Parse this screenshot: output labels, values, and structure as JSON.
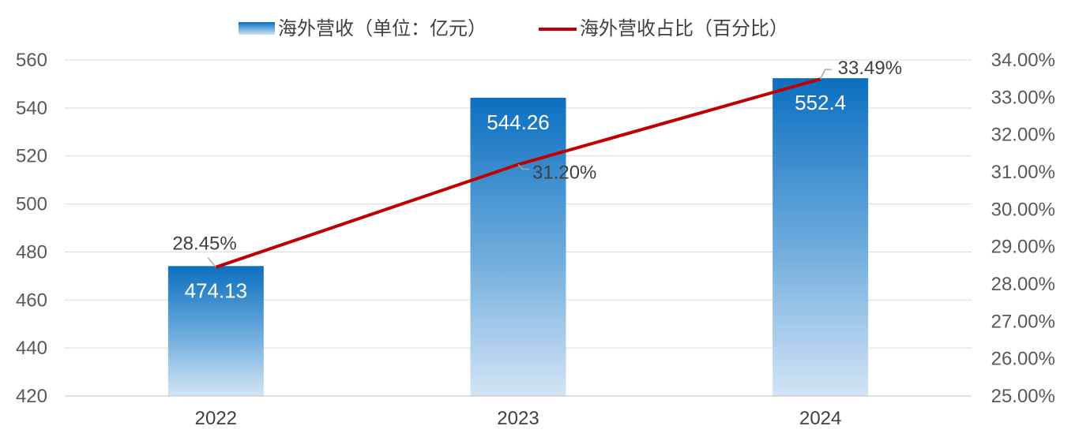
{
  "chart_data": {
    "type": "bar",
    "categories": [
      "2022",
      "2023",
      "2024"
    ],
    "series": [
      {
        "name": "海外营收（单位：亿元）",
        "type": "bar",
        "axis": "left",
        "values": [
          474.13,
          544.26,
          552.4
        ],
        "labels": [
          "474.13",
          "544.26",
          "552.4"
        ],
        "color": "#1a75c2"
      },
      {
        "name": "海外营收占比（百分比）",
        "type": "line",
        "axis": "right",
        "values": [
          28.45,
          31.2,
          33.49
        ],
        "labels": [
          "28.45%",
          "31.20%",
          "33.49%"
        ],
        "color": "#c00000"
      }
    ],
    "y_left": {
      "min": 420,
      "max": 560,
      "ticks": [
        "420",
        "440",
        "460",
        "480",
        "500",
        "520",
        "540",
        "560"
      ]
    },
    "y_right": {
      "min": 25,
      "max": 34,
      "ticks": [
        "25.00%",
        "26.00%",
        "27.00%",
        "28.00%",
        "29.00%",
        "30.00%",
        "31.00%",
        "32.00%",
        "33.00%",
        "34.00%"
      ]
    },
    "grid": true,
    "legend_position": "top-center",
    "title": "",
    "xlabel": "",
    "ylabel": ""
  }
}
